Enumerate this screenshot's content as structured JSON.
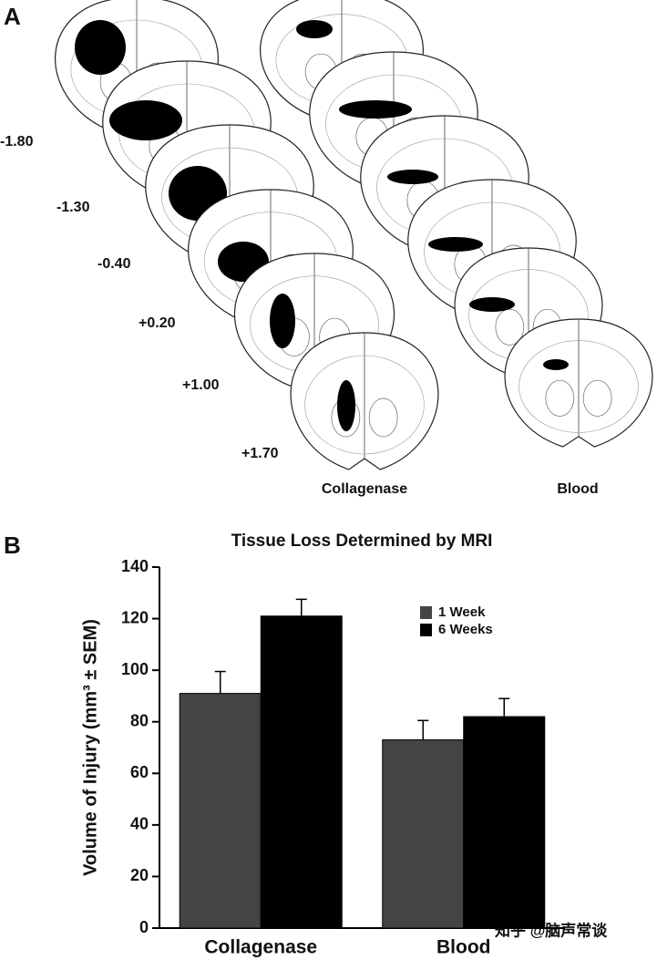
{
  "panel_a": {
    "label": "A",
    "sections": [
      "-1.80",
      "-1.30",
      "-0.40",
      "+0.20",
      "+1.00",
      "+1.70"
    ],
    "columns": [
      "Collagenase",
      "Blood"
    ]
  },
  "chart_data": {
    "panel_label": "B",
    "type": "bar",
    "title": "Tissue Loss Determined by MRI",
    "y_label": "Volume of Injury (mm³ ± SEM)",
    "categories": [
      "Collagenase",
      "Blood"
    ],
    "series": [
      {
        "name": "1 Week",
        "color": "#444444",
        "values": [
          91,
          73
        ],
        "errors": [
          8.5,
          7.5
        ]
      },
      {
        "name": "6 Weeks",
        "color": "#000000",
        "values": [
          121,
          82
        ],
        "errors": [
          6.5,
          7
        ]
      }
    ],
    "ylim": [
      0,
      140
    ],
    "yticks": [
      0,
      20,
      40,
      60,
      80,
      100,
      120,
      140
    ]
  },
  "watermark": "知乎 @脑声常谈"
}
